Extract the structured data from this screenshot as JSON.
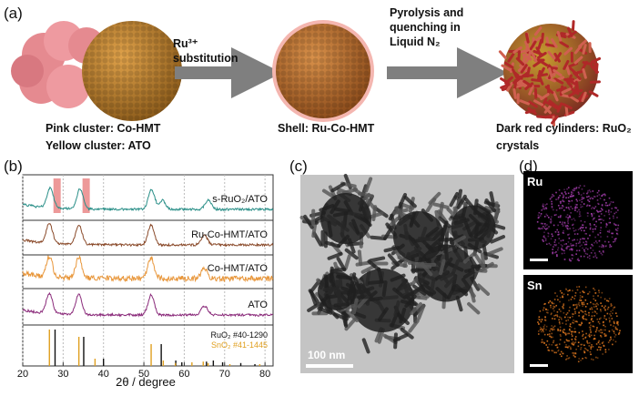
{
  "panel_a": {
    "label": "(a)",
    "arrow1": {
      "line1": "Ru³⁺",
      "line2": "substitution"
    },
    "arrow2": {
      "line1": "Pyrolysis and",
      "line2": "quenching in",
      "line3": "Liquid N₂"
    },
    "caption1": {
      "line1": "Pink cluster: Co-HMT",
      "line2": "Yellow cluster: ATO"
    },
    "caption2": "Shell: Ru-Co-HMT",
    "caption3": {
      "line1": "Dark red cylinders: RuO₂",
      "line2": "crystals"
    }
  },
  "chart_data": {
    "type": "xrd",
    "label": "(b)",
    "xlabel": "2θ / degree",
    "xlim": [
      20,
      82
    ],
    "xticks": [
      20,
      30,
      40,
      50,
      60,
      70,
      80
    ],
    "grid": true,
    "highlights": [
      [
        27.6,
        29.4
      ],
      [
        34.8,
        36.6
      ]
    ],
    "series": [
      {
        "name": "s-RuO₂/ATO",
        "color": "#2a8f88",
        "peaks": [
          26.8,
          34.2,
          51.9,
          54.6,
          65.9
        ]
      },
      {
        "name": "Ru-Co-HMT/ATO",
        "color": "#8a4a2a",
        "peaks": [
          26.6,
          33.9,
          51.8,
          65.0
        ]
      },
      {
        "name": "Co-HMT/ATO",
        "color": "#e8963a",
        "peaks": [
          26.6,
          33.9,
          51.8,
          65.0
        ]
      },
      {
        "name": "ATO",
        "color": "#8a2a7a",
        "peaks": [
          26.6,
          33.9,
          51.8,
          65.0
        ]
      }
    ],
    "references": [
      {
        "name": "RuO₂ #40-1290",
        "color": "#111111",
        "positions": [
          28.0,
          35.1,
          40.0,
          54.3,
          57.9,
          59.4,
          65.5,
          67.2,
          69.5,
          74.0,
          77.5
        ],
        "heights": [
          100,
          80,
          20,
          60,
          15,
          10,
          12,
          15,
          10,
          8,
          5
        ]
      },
      {
        "name": "SnO₂ #41-1445",
        "color": "#e0a020",
        "positions": [
          26.6,
          33.9,
          37.9,
          51.8,
          54.8,
          57.8,
          61.9,
          64.7,
          65.9,
          71.3,
          78.7
        ],
        "heights": [
          100,
          80,
          20,
          60,
          15,
          8,
          10,
          12,
          8,
          5,
          5
        ]
      }
    ]
  },
  "panel_c": {
    "label": "(c)",
    "scale_bar": "100 nm"
  },
  "panel_d": {
    "label": "(d)",
    "map1": "Ru",
    "map2": "Sn"
  }
}
